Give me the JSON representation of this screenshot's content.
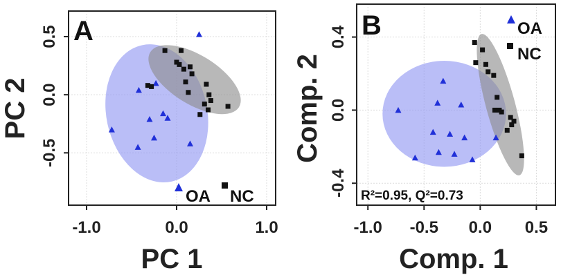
{
  "chart_data": [
    {
      "type": "scatter",
      "panel_label": "A",
      "xlabel": "PC 1",
      "ylabel": "PC 2",
      "xlim": [
        -1.2,
        1.1
      ],
      "ylim": [
        -0.95,
        0.72
      ],
      "xticks": [
        -1.0,
        0.0,
        1.0
      ],
      "xtick_labels": [
        "-1.0",
        "0.0",
        "1.0"
      ],
      "yticks": [
        0.5,
        0.0,
        -0.5
      ],
      "ytick_labels": [
        "0.5",
        "0.0",
        "-0.5"
      ],
      "grid": true,
      "legend_placement": "bottom-right",
      "series": [
        {
          "name": "OA",
          "marker": "triangle",
          "color": "#2030d8",
          "ellipse_color": "#8f96f2",
          "ellipse": {
            "cx": -0.22,
            "cy": -0.16,
            "rx": 0.56,
            "ry": 0.6,
            "angle": -12
          },
          "points": [
            [
              0.25,
              0.52
            ],
            [
              -0.23,
              0.1
            ],
            [
              -0.42,
              0.04
            ],
            [
              -0.72,
              -0.3
            ],
            [
              -0.3,
              -0.21
            ],
            [
              -0.15,
              -0.16
            ],
            [
              -0.1,
              -0.2
            ],
            [
              -0.25,
              -0.37
            ],
            [
              -0.43,
              -0.45
            ],
            [
              0.15,
              -0.42
            ]
          ]
        },
        {
          "name": "NC",
          "marker": "square",
          "color": "#111111",
          "ellipse_color": "#8c8c8c",
          "ellipse": {
            "cx": 0.2,
            "cy": 0.13,
            "rx": 0.58,
            "ry": 0.21,
            "angle": 32
          },
          "points": [
            [
              -0.13,
              0.38
            ],
            [
              0.05,
              0.38
            ],
            [
              0.0,
              0.28
            ],
            [
              0.03,
              0.26
            ],
            [
              0.15,
              0.24
            ],
            [
              0.08,
              0.22
            ],
            [
              0.17,
              0.18
            ],
            [
              0.1,
              0.11
            ],
            [
              0.33,
              0.09
            ],
            [
              -0.32,
              0.08
            ],
            [
              -0.28,
              0.07
            ],
            [
              0.13,
              0.02
            ],
            [
              0.36,
              0.0
            ],
            [
              0.38,
              -0.05
            ],
            [
              0.57,
              -0.1
            ],
            [
              0.31,
              -0.08
            ],
            [
              0.35,
              -0.13
            ],
            [
              0.26,
              -0.17
            ]
          ]
        }
      ]
    },
    {
      "type": "scatter",
      "panel_label": "B",
      "xlabel": "Comp. 1",
      "ylabel": "Comp. 2",
      "xlim": [
        -1.1,
        0.67
      ],
      "ylim": [
        -0.52,
        0.58
      ],
      "xticks": [
        -1.0,
        -0.5,
        0.0,
        0.5
      ],
      "xtick_labels": [
        "-1.0",
        "-0.5",
        "0.0",
        "0.5"
      ],
      "yticks": [
        0.4,
        0.0,
        -0.4
      ],
      "ytick_labels": [
        "0.4",
        "0.0",
        "-0.4"
      ],
      "grid": true,
      "legend_placement": "top-right",
      "annotation": "R²=0.95, Q²=0.73",
      "series": [
        {
          "name": "OA",
          "marker": "triangle",
          "color": "#2030d8",
          "ellipse_color": "#8f96f2",
          "ellipse": {
            "cx": -0.32,
            "cy": -0.02,
            "rx": 0.55,
            "ry": 0.29,
            "angle": 0
          },
          "points": [
            [
              -0.73,
              0.0
            ],
            [
              -0.33,
              0.16
            ],
            [
              -0.38,
              0.04
            ],
            [
              -0.17,
              0.03
            ],
            [
              -0.42,
              -0.12
            ],
            [
              -0.27,
              -0.13
            ],
            [
              -0.14,
              -0.15
            ],
            [
              -0.37,
              -0.23
            ],
            [
              -0.23,
              -0.24
            ],
            [
              -0.58,
              -0.26
            ],
            [
              -0.07,
              -0.27
            ],
            [
              0.14,
              -0.15
            ]
          ]
        },
        {
          "name": "NC",
          "marker": "square",
          "color": "#111111",
          "ellipse_color": "#8c8c8c",
          "ellipse": {
            "cx": 0.18,
            "cy": 0.03,
            "rx": 0.13,
            "ry": 0.4,
            "angle": -15
          },
          "points": [
            [
              -0.05,
              0.37
            ],
            [
              0.02,
              0.33
            ],
            [
              -0.04,
              0.26
            ],
            [
              0.05,
              0.25
            ],
            [
              0.07,
              0.21
            ],
            [
              0.12,
              0.19
            ],
            [
              0.15,
              0.07
            ],
            [
              0.13,
              0.0
            ],
            [
              0.17,
              0.0
            ],
            [
              0.19,
              -0.01
            ],
            [
              0.27,
              -0.04
            ],
            [
              0.3,
              -0.06
            ],
            [
              0.28,
              -0.08
            ],
            [
              0.24,
              -0.11
            ],
            [
              0.37,
              -0.25
            ]
          ]
        }
      ]
    }
  ]
}
